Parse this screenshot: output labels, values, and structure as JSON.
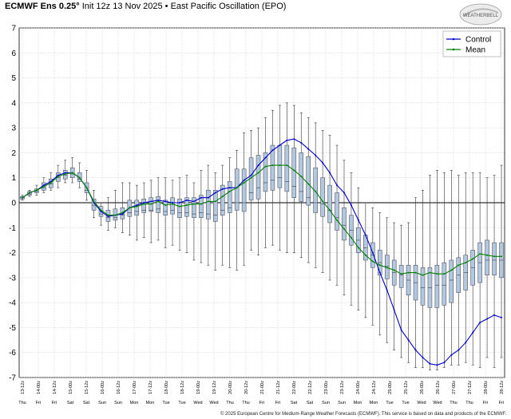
{
  "header": {
    "model": "ECMWF Ens 0.25°",
    "run": "Init 12z 13 Nov 2025",
    "separator": "•",
    "index_name": "East Pacific Oscillation (EPO)"
  },
  "logo": {
    "text": "WEATHERBELL"
  },
  "footer": {
    "text": "© 2025 European Centre for Medium-Range Weather Forecasts (ECMWF). This service is based on data and products of the ECMWF."
  },
  "colors": {
    "control": "#0000cc",
    "mean": "#008000",
    "box_fill": "#b4c8dc",
    "box_stroke": "#3a3a55",
    "grid": "#c8c8c8"
  },
  "chart_data": {
    "type": "line",
    "title": "ECMWF Ens 0.25° Init 12z 13 Nov 2025 • East Pacific Oscillation (EPO)",
    "ylim": [
      -7,
      7
    ],
    "yticks": [
      7,
      6,
      5,
      4,
      3,
      2,
      1,
      0,
      -1,
      -2,
      -3,
      -4,
      -5,
      -6,
      -7
    ],
    "grid": true,
    "legend_position": "top-right",
    "time_labels": [
      "13-12z",
      "14-00z",
      "14-12z",
      "15-00z",
      "15-12z",
      "16-00z",
      "16-12z",
      "17-00z",
      "17-12z",
      "18-00z",
      "18-12z",
      "19-00z",
      "19-12z",
      "20-00z",
      "20-12z",
      "21-00z",
      "21-12z",
      "22-00z",
      "22-12z",
      "23-00z",
      "23-12z",
      "24-00z",
      "24-12z",
      "25-00z",
      "25-12z",
      "26-00z",
      "26-12z",
      "27-00z",
      "27-12z",
      "28-00z",
      "28-12z"
    ],
    "day_labels": [
      "Thu",
      "Fri",
      "Fri",
      "Sat",
      "Sat",
      "Sun",
      "Sun",
      "Mon",
      "Mon",
      "Tue",
      "Tue",
      "Wed",
      "Wed",
      "Thu",
      "Thu",
      "Fri",
      "Fri",
      "Sat",
      "Sat",
      "Sun",
      "Sun",
      "Mon",
      "Mon",
      "Tue",
      "Tue",
      "Wed",
      "Wed",
      "Thu",
      "Thu",
      "Fri",
      "Fri"
    ],
    "series": [
      {
        "name": "Control",
        "values": [
          0.2,
          0.4,
          0.5,
          0.7,
          0.85,
          1.1,
          1.2,
          1.2,
          1.0,
          0.6,
          0.0,
          -0.35,
          -0.55,
          -0.5,
          -0.45,
          -0.2,
          -0.1,
          0.0,
          0.05,
          0.1,
          0.05,
          0.0,
          0.0,
          0.1,
          0.05,
          0.2,
          0.2,
          0.4,
          0.55,
          0.6,
          0.6,
          0.9,
          1.1,
          1.5,
          1.8,
          2.1,
          2.3,
          2.5,
          2.55,
          2.4,
          2.15,
          1.9,
          1.6,
          1.2,
          0.7,
          0.4,
          -0.1,
          -0.7,
          -1.3,
          -2.0,
          -2.8,
          -3.5,
          -4.3,
          -5.1,
          -5.5,
          -5.9,
          -6.2,
          -6.45,
          -6.5,
          -6.4,
          -6.1,
          -5.9,
          -5.6,
          -5.2,
          -4.8,
          -4.65,
          -4.5,
          -4.6
        ]
      },
      {
        "name": "Mean",
        "values": [
          0.2,
          0.4,
          0.5,
          0.65,
          0.8,
          1.05,
          1.15,
          1.2,
          1.0,
          0.6,
          0.05,
          -0.3,
          -0.5,
          -0.5,
          -0.4,
          -0.2,
          -0.15,
          -0.05,
          -0.05,
          0.05,
          -0.1,
          -0.05,
          -0.15,
          -0.1,
          -0.05,
          -0.05,
          0.05,
          0.05,
          0.25,
          0.45,
          0.6,
          0.8,
          1.0,
          1.2,
          1.45,
          1.5,
          1.5,
          1.5,
          1.3,
          1.05,
          0.75,
          0.45,
          0.05,
          -0.3,
          -0.7,
          -1.05,
          -1.4,
          -1.8,
          -2.1,
          -2.35,
          -2.5,
          -2.6,
          -2.7,
          -2.85,
          -2.8,
          -2.8,
          -2.9,
          -2.8,
          -2.85,
          -2.85,
          -2.7,
          -2.5,
          -2.4,
          -2.25,
          -2.05,
          -2.1,
          -2.15,
          -2.15
        ]
      }
    ],
    "boxes": [
      [
        0.15,
        0.2,
        0.25,
        0.2
      ],
      [
        0.3,
        0.35,
        0.45,
        0.4
      ],
      [
        0.4,
        0.45,
        0.55,
        0.5
      ],
      [
        0.5,
        0.6,
        0.8,
        0.7
      ],
      [
        0.6,
        0.75,
        0.95,
        0.8
      ],
      [
        0.85,
        1.0,
        1.2,
        1.1
      ],
      [
        0.95,
        1.1,
        1.3,
        1.2
      ],
      [
        1.0,
        1.15,
        1.4,
        1.2
      ],
      [
        0.85,
        0.95,
        1.2,
        1.0
      ],
      [
        0.4,
        0.5,
        0.8,
        0.6
      ],
      [
        -0.3,
        -0.1,
        0.15,
        0.0
      ],
      [
        -0.55,
        -0.45,
        -0.15,
        -0.3
      ],
      [
        -0.75,
        -0.6,
        -0.3,
        -0.5
      ],
      [
        -0.7,
        -0.6,
        -0.25,
        -0.5
      ],
      [
        -0.65,
        -0.5,
        -0.2,
        -0.4
      ],
      [
        -0.55,
        -0.4,
        0.1,
        -0.2
      ],
      [
        -0.5,
        -0.35,
        0.1,
        -0.15
      ],
      [
        -0.4,
        -0.3,
        0.15,
        -0.05
      ],
      [
        -0.35,
        -0.3,
        0.2,
        -0.05
      ],
      [
        -0.4,
        -0.25,
        0.25,
        0.05
      ],
      [
        -0.5,
        -0.35,
        0.1,
        -0.1
      ],
      [
        -0.45,
        -0.3,
        0.2,
        -0.05
      ],
      [
        -0.6,
        -0.4,
        0.15,
        -0.15
      ],
      [
        -0.55,
        -0.4,
        0.2,
        -0.1
      ],
      [
        -0.6,
        -0.45,
        0.2,
        -0.05
      ],
      [
        -0.6,
        -0.4,
        0.3,
        -0.05
      ],
      [
        -0.65,
        -0.45,
        0.5,
        0.05
      ],
      [
        -0.75,
        -0.5,
        0.5,
        0.05
      ],
      [
        -0.5,
        -0.3,
        0.7,
        0.25
      ],
      [
        -0.4,
        -0.2,
        0.85,
        0.45
      ],
      [
        -0.3,
        0.0,
        1.35,
        0.6
      ],
      [
        -0.35,
        0.0,
        1.35,
        0.8
      ],
      [
        0.1,
        0.4,
        1.8,
        1.0
      ],
      [
        0.15,
        0.6,
        1.9,
        1.2
      ],
      [
        0.45,
        0.8,
        2.0,
        1.45
      ],
      [
        0.5,
        0.9,
        2.3,
        1.5
      ],
      [
        0.6,
        1.0,
        2.3,
        1.5
      ],
      [
        0.45,
        0.85,
        2.3,
        1.5
      ],
      [
        0.2,
        0.65,
        2.2,
        1.3
      ],
      [
        0.05,
        0.45,
        2.0,
        1.05
      ],
      [
        -0.1,
        0.2,
        1.85,
        0.75
      ],
      [
        -0.4,
        0.0,
        1.4,
        0.45
      ],
      [
        -0.55,
        -0.05,
        1.0,
        0.05
      ],
      [
        -0.8,
        -0.3,
        0.7,
        -0.3
      ],
      [
        -1.1,
        -0.6,
        0.4,
        -0.7
      ],
      [
        -1.5,
        -0.9,
        -0.2,
        -1.05
      ],
      [
        -1.7,
        -1.1,
        -0.5,
        -1.4
      ],
      [
        -2.0,
        -1.5,
        -1.0,
        -1.8
      ],
      [
        -2.3,
        -1.8,
        -1.3,
        -2.1
      ],
      [
        -2.6,
        -2.1,
        -1.6,
        -2.35
      ],
      [
        -2.9,
        -2.4,
        -1.9,
        -2.5
      ],
      [
        -3.05,
        -2.55,
        -2.1,
        -2.6
      ],
      [
        -3.3,
        -2.8,
        -2.3,
        -2.7
      ],
      [
        -3.4,
        -2.9,
        -2.5,
        -2.85
      ],
      [
        -3.7,
        -3.1,
        -2.5,
        -2.8
      ],
      [
        -3.9,
        -3.2,
        -2.5,
        -2.8
      ],
      [
        -4.1,
        -3.4,
        -2.6,
        -2.9
      ],
      [
        -4.2,
        -3.4,
        -2.6,
        -2.8
      ],
      [
        -4.2,
        -3.3,
        -2.5,
        -2.85
      ],
      [
        -4.1,
        -3.3,
        -2.4,
        -2.85
      ],
      [
        -4.0,
        -3.1,
        -2.3,
        -2.7
      ],
      [
        -3.6,
        -2.9,
        -2.2,
        -2.5
      ],
      [
        -3.5,
        -2.8,
        -2.1,
        -2.4
      ],
      [
        -3.3,
        -2.6,
        -1.9,
        -2.25
      ],
      [
        -3.2,
        -2.4,
        -1.6,
        -2.05
      ],
      [
        -2.9,
        -2.3,
        -1.5,
        -2.1
      ],
      [
        -2.9,
        -2.3,
        -1.6,
        -2.15
      ],
      [
        -3.0,
        -2.3,
        -1.6,
        -2.15
      ]
    ],
    "whiskers": [
      [
        0.1,
        0.3
      ],
      [
        0.25,
        0.5
      ],
      [
        0.3,
        0.7
      ],
      [
        0.4,
        1.0
      ],
      [
        0.5,
        1.2
      ],
      [
        0.6,
        1.5
      ],
      [
        0.8,
        1.7
      ],
      [
        0.8,
        1.8
      ],
      [
        0.6,
        1.6
      ],
      [
        0.1,
        1.3
      ],
      [
        -0.6,
        0.5
      ],
      [
        -0.9,
        0.0
      ],
      [
        -1.1,
        0.2
      ],
      [
        -1.0,
        0.5
      ],
      [
        -1.2,
        0.8
      ],
      [
        -1.3,
        0.8
      ],
      [
        -1.5,
        0.7
      ],
      [
        -1.4,
        0.8
      ],
      [
        -1.6,
        0.9
      ],
      [
        -1.5,
        1.0
      ],
      [
        -1.8,
        1.0
      ],
      [
        -1.7,
        0.9
      ],
      [
        -1.9,
        1.0
      ],
      [
        -2.0,
        1.1
      ],
      [
        -2.3,
        0.8
      ],
      [
        -2.4,
        1.3
      ],
      [
        -2.5,
        1.5
      ],
      [
        -2.7,
        1.2
      ],
      [
        -2.5,
        1.5
      ],
      [
        -2.6,
        1.8
      ],
      [
        -2.7,
        2.1
      ],
      [
        -2.5,
        2.8
      ],
      [
        -1.9,
        2.9
      ],
      [
        -2.1,
        3.0
      ],
      [
        -1.8,
        3.4
      ],
      [
        -1.7,
        3.7
      ],
      [
        -1.9,
        3.9
      ],
      [
        -2.0,
        4.0
      ],
      [
        -2.0,
        3.9
      ],
      [
        -2.2,
        3.6
      ],
      [
        -2.4,
        3.4
      ],
      [
        -2.6,
        3.2
      ],
      [
        -2.8,
        2.9
      ],
      [
        -3.1,
        2.7
      ],
      [
        -3.3,
        2.3
      ],
      [
        -3.7,
        1.7
      ],
      [
        -4.1,
        1.2
      ],
      [
        -4.3,
        0.6
      ],
      [
        -4.6,
        0.0
      ],
      [
        -4.9,
        -0.2
      ],
      [
        -5.3,
        -0.4
      ],
      [
        -5.6,
        -0.6
      ],
      [
        -5.9,
        -0.8
      ],
      [
        -6.2,
        -0.9
      ],
      [
        -6.4,
        -0.8
      ],
      [
        -6.6,
        0.2
      ],
      [
        -6.6,
        0.5
      ],
      [
        -6.7,
        1.1
      ],
      [
        -6.7,
        1.3
      ],
      [
        -6.6,
        1.2
      ],
      [
        -6.5,
        1.3
      ],
      [
        -6.5,
        1.1
      ],
      [
        -6.4,
        1.2
      ],
      [
        -6.5,
        1.2
      ],
      [
        -6.6,
        1.2
      ],
      [
        -6.2,
        1.0
      ],
      [
        -6.6,
        1.1
      ],
      [
        -6.2,
        1.5
      ]
    ]
  }
}
